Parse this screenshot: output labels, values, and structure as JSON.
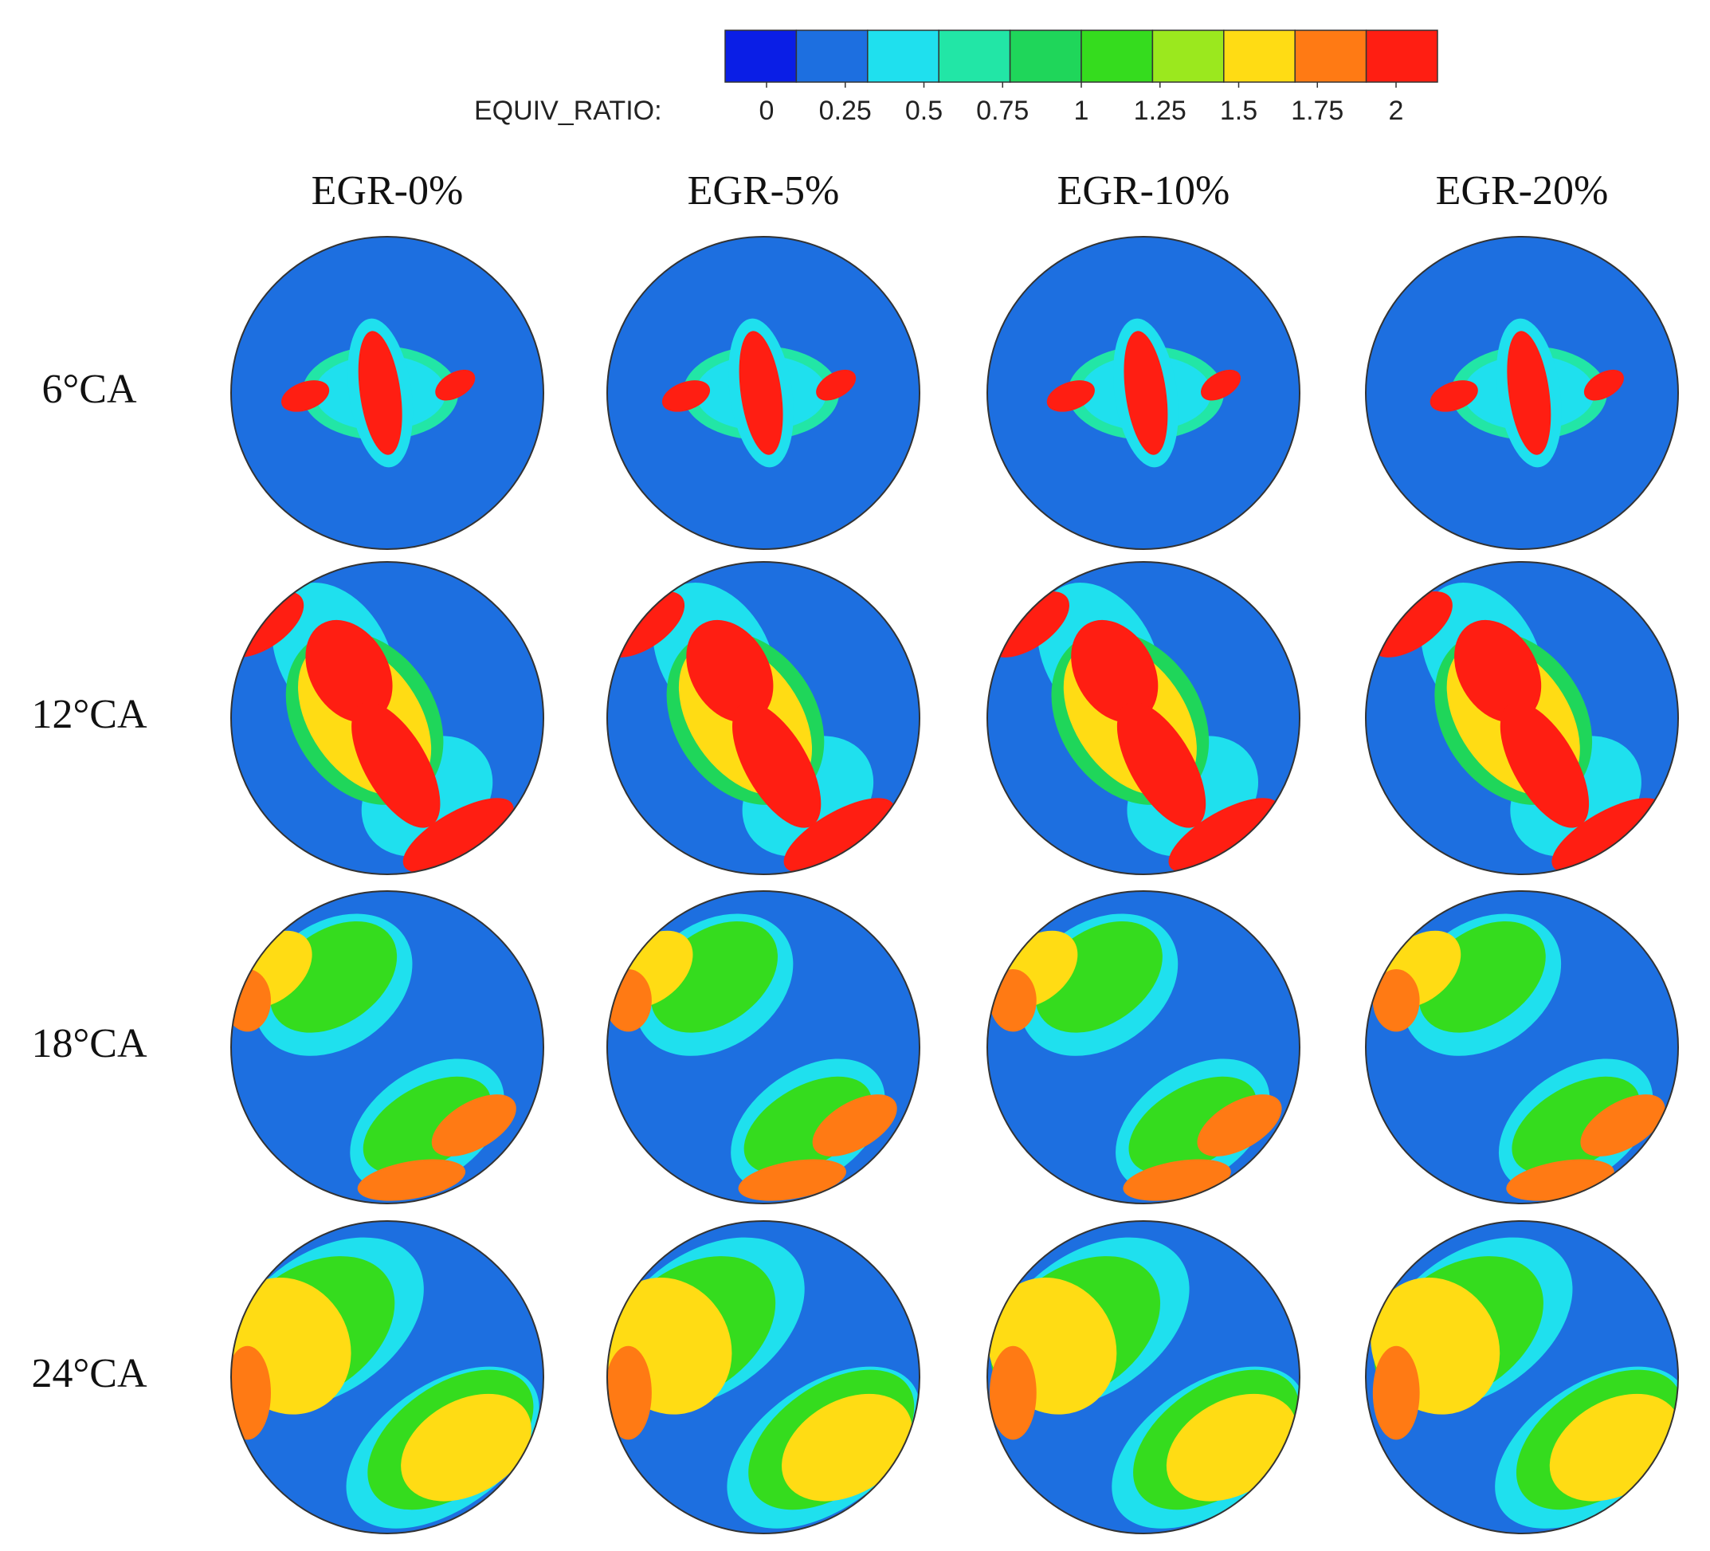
{
  "colorbar": {
    "label": "EQUIV_RATIO:",
    "ticks": [
      0,
      0.25,
      0.5,
      0.75,
      1,
      1.25,
      1.5,
      1.75,
      2
    ],
    "colors": [
      "#0a1ee6",
      "#1d6fe0",
      "#1fe0ee",
      "#22e6a6",
      "#1fd65a",
      "#35dc1e",
      "#9be81e",
      "#ffdc14",
      "#ff7a14",
      "#ff1e12"
    ]
  },
  "columns": [
    "EGR-0%",
    "EGR-5%",
    "EGR-10%",
    "EGR-20%"
  ],
  "rows": [
    "6°CA",
    "12°CA",
    "18°CA",
    "24°CA"
  ]
}
